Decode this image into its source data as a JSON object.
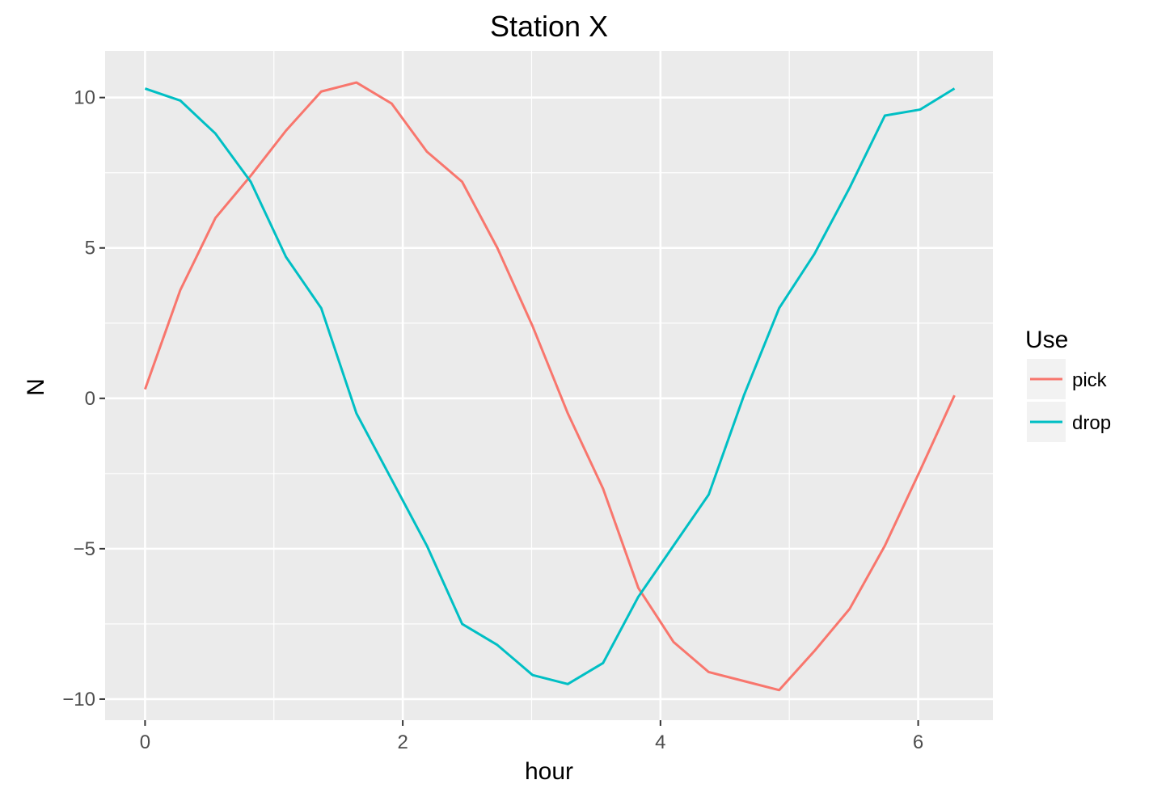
{
  "chart_data": {
    "type": "line",
    "title": "Station X",
    "xlabel": "hour",
    "ylabel": "N",
    "xlim": [
      -0.31,
      6.58
    ],
    "ylim": [
      -10.7,
      11.55
    ],
    "xticks": [
      0,
      2,
      4,
      6
    ],
    "xtick_labels": [
      "0",
      "2",
      "4",
      "6"
    ],
    "yticks": [
      -10,
      -5,
      0,
      5,
      10
    ],
    "ytick_labels": [
      "−10",
      "−5",
      "0",
      "5",
      "10"
    ],
    "grid": true,
    "legend": {
      "title": "Use",
      "position": "right"
    },
    "x": [
      0,
      0.2735,
      0.5467,
      0.8202,
      1.0936,
      1.3671,
      1.6405,
      1.9138,
      2.1872,
      2.4607,
      2.7341,
      3.0075,
      3.2808,
      3.5543,
      3.8278,
      4.1012,
      4.3745,
      4.6479,
      4.9213,
      5.1948,
      5.4681,
      5.7416,
      6.015,
      6.2818
    ],
    "series": [
      {
        "name": "pick",
        "color": "#F8766D",
        "values": [
          0.3,
          3.6,
          6.0,
          7.4,
          8.9,
          10.2,
          10.5,
          9.8,
          8.2,
          7.2,
          5.0,
          2.4,
          -0.5,
          -3.0,
          -6.3,
          -8.1,
          -9.1,
          -9.4,
          -9.7,
          -8.4,
          -7.0,
          -4.9,
          -2.4,
          0.1
        ]
      },
      {
        "name": "drop",
        "color": "#00BFC4",
        "values": [
          10.3,
          9.9,
          8.8,
          7.2,
          4.7,
          3.0,
          -0.5,
          -2.7,
          -4.9,
          -7.5,
          -8.2,
          -9.2,
          -9.5,
          -8.8,
          -6.6,
          -4.9,
          -3.2,
          0.1,
          3.0,
          4.8,
          7.0,
          9.4,
          9.6,
          10.3
        ]
      }
    ]
  }
}
